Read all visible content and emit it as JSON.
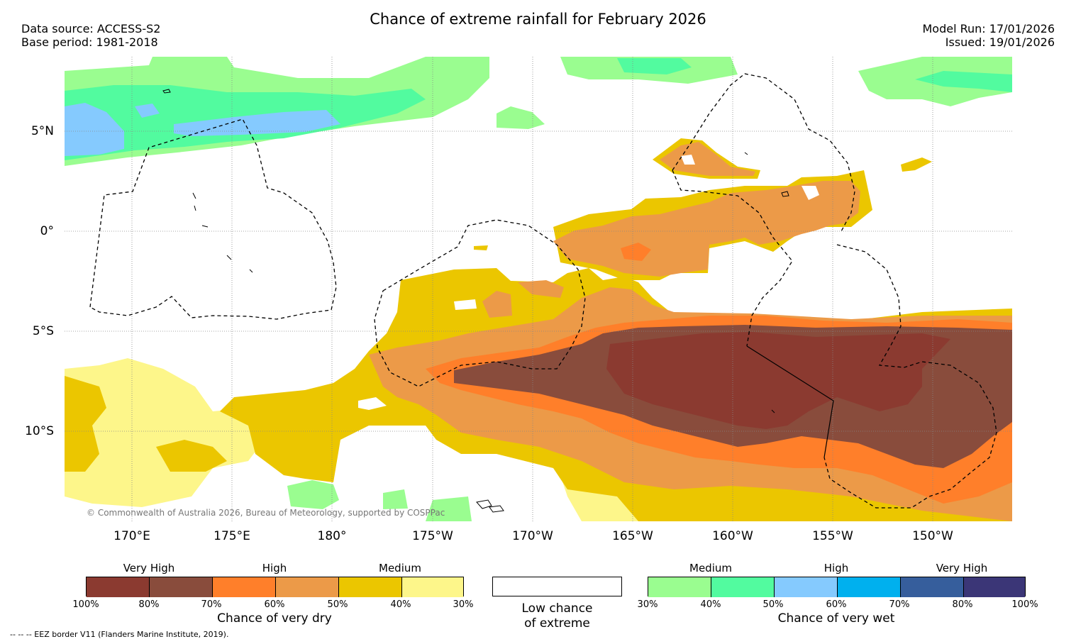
{
  "title": "Chance of extreme rainfall for February 2026",
  "meta": {
    "data_source": "Data source: ACCESS-S2",
    "base_period": "Base period: 1981-2018",
    "model_run": "Model Run: 17/01/2026",
    "issued": "Issued: 19/01/2026"
  },
  "map": {
    "lat_labels": [
      "5°N",
      "0°",
      "5°S",
      "10°S"
    ],
    "lon_labels": [
      "170°E",
      "175°E",
      "180°",
      "175°W",
      "170°W",
      "165°W",
      "160°W",
      "155°W",
      "150°W"
    ],
    "copyright": "© Commonwealth of Australia 2026, Bureau of Meteorology, supported by COSPPac"
  },
  "colors": {
    "dry": [
      "#8b3a30",
      "#894c3c",
      "#ff7f2a",
      "#ec9a48",
      "#ebc600",
      "#fdf68a"
    ],
    "wet": [
      "#9afd90",
      "#52fb9f",
      "#85cafe",
      "#00b0ee",
      "#365e9c",
      "#3b3677"
    ],
    "graticule": "#888888"
  },
  "legend": {
    "dry": {
      "headers": [
        "Very High",
        "High",
        "Medium"
      ],
      "ticks": [
        "100%",
        "80%",
        "70%",
        "60%",
        "50%",
        "40%",
        "30%"
      ],
      "caption": "Chance of very dry"
    },
    "low": {
      "caption_line1": "Low chance",
      "caption_line2": "of extreme"
    },
    "wet": {
      "headers": [
        "Medium",
        "High",
        "Very High"
      ],
      "ticks": [
        "30%",
        "40%",
        "50%",
        "60%",
        "70%",
        "80%",
        "100%"
      ],
      "caption": "Chance of very wet"
    }
  },
  "footnote": "--  --  -- EEZ border V11 (Flanders Marine Institute, 2019)."
}
